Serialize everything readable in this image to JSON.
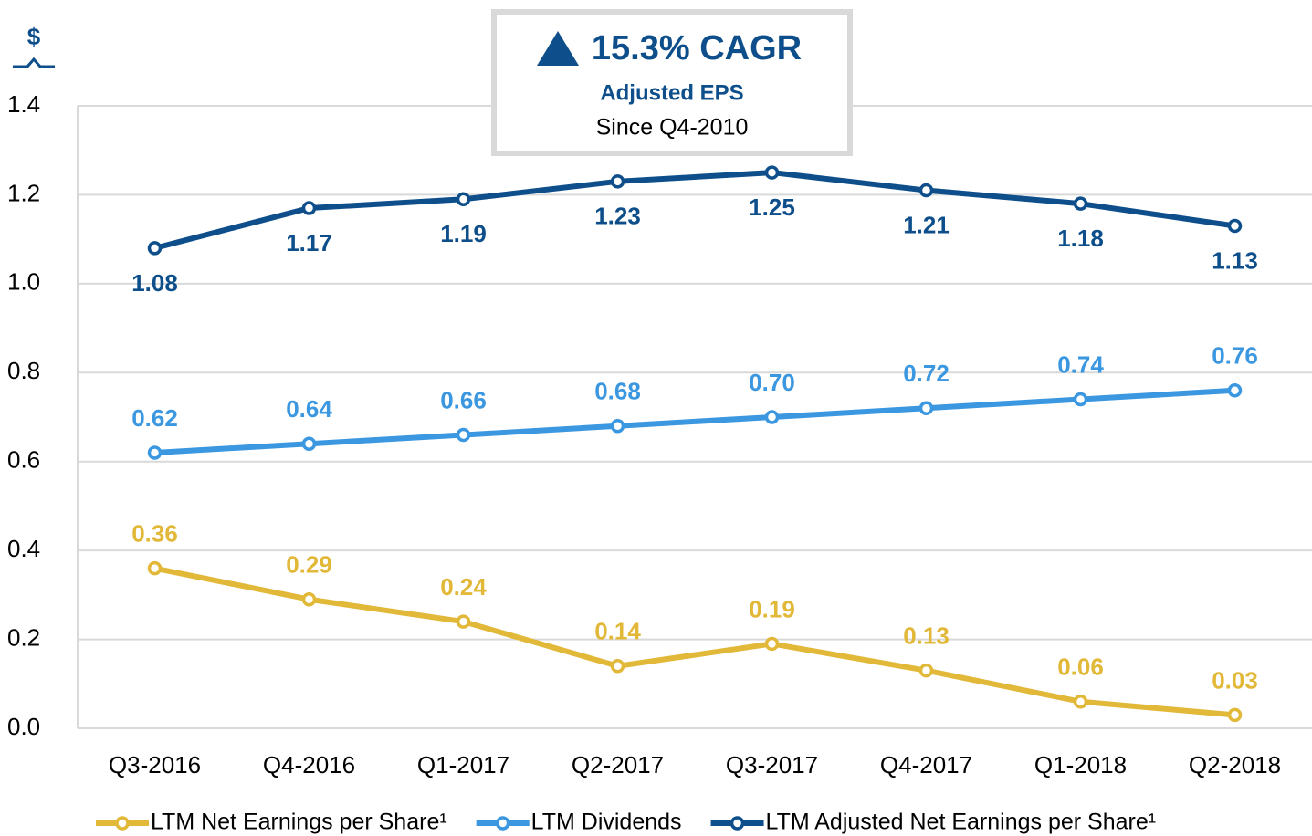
{
  "chart_data": {
    "type": "line",
    "y_label": "$",
    "annotation": {
      "headline": "15.3% CAGR",
      "subtitle": "Adjusted EPS",
      "note": "Since Q4-2010"
    },
    "categories": [
      "Q3-2016",
      "Q4-2016",
      "Q1-2017",
      "Q2-2017",
      "Q3-2017",
      "Q4-2017",
      "Q1-2018",
      "Q2-2018"
    ],
    "series": [
      {
        "name": "LTM Net Earnings per Share¹",
        "color": "#e2b838",
        "values": [
          0.36,
          0.29,
          0.24,
          0.14,
          0.19,
          0.13,
          0.06,
          0.03
        ],
        "value_labels": [
          "0.36",
          "0.29",
          "0.24",
          "0.14",
          "0.19",
          "0.13",
          "0.06",
          "0.03"
        ]
      },
      {
        "name": "LTM Dividends",
        "color": "#3a97e0",
        "values": [
          0.62,
          0.64,
          0.66,
          0.68,
          0.7,
          0.72,
          0.74,
          0.76
        ],
        "value_labels": [
          "0.62",
          "0.64",
          "0.66",
          "0.68",
          "0.70",
          "0.72",
          "0.74",
          "0.76"
        ]
      },
      {
        "name": "LTM Adjusted Net Earnings per Share¹",
        "color": "#0e4f8b",
        "values": [
          1.08,
          1.17,
          1.19,
          1.23,
          1.25,
          1.21,
          1.18,
          1.13
        ],
        "value_labels": [
          "1.08",
          "1.17",
          "1.19",
          "1.23",
          "1.25",
          "1.21",
          "1.18",
          "1.13"
        ]
      }
    ],
    "ylim": [
      0,
      1.4
    ],
    "yticks": [
      {
        "value": 0,
        "label": "0.0"
      },
      {
        "value": 0.2,
        "label": "0.2"
      },
      {
        "value": 0.4,
        "label": "0.4"
      },
      {
        "value": 0.6,
        "label": "0.6"
      },
      {
        "value": 0.8,
        "label": "0.8"
      },
      {
        "value": 1.0,
        "label": "1.0"
      },
      {
        "value": 1.2,
        "label": "1.2"
      },
      {
        "value": 1.4,
        "label": "1.4"
      }
    ],
    "grid": true
  }
}
